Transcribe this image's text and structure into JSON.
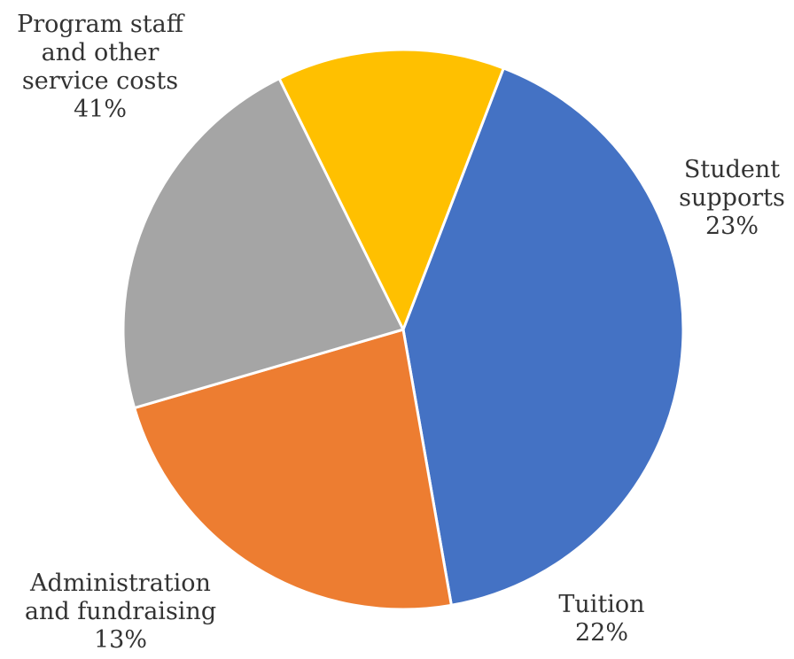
{
  "chart_data": {
    "type": "pie",
    "title": "",
    "categories": [
      "Program staff and other service costs",
      "Student supports",
      "Tuition",
      "Administration and fundraising"
    ],
    "values": [
      41,
      23,
      22,
      13
    ],
    "colors": [
      "#4472c4",
      "#ed7d31",
      "#a5a5a5",
      "#ffc000"
    ],
    "start_angle_deg": 21,
    "direction": "clockwise",
    "legend": "none",
    "data_labels": [
      {
        "lines": [
          "Program staff",
          "and other",
          "service costs"
        ],
        "pct": "41%"
      },
      {
        "lines": [
          "Student",
          "supports"
        ],
        "pct": "23%"
      },
      {
        "lines": [
          "Tuition"
        ],
        "pct": "22%"
      },
      {
        "lines": [
          "Administration",
          "and fundraising"
        ],
        "pct": "13%"
      }
    ]
  }
}
